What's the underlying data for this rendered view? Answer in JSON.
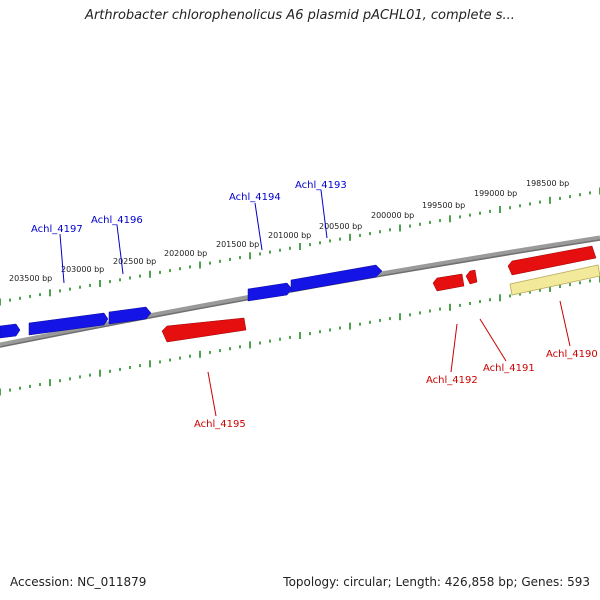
{
  "title": "Arthrobacter chlorophenolicus A6 plasmid pACHL01, complete s...",
  "footer": {
    "accession": "Accession: NC_011879",
    "summary": "Topology: circular; Length: 426,858 bp; Genes: 593"
  },
  "colors": {
    "forward_gene": "#0a0adc",
    "reverse_gene": "#e00000",
    "highlight_gene": "#f0e68c",
    "backbone": "#808080",
    "ticks": "#228b22",
    "forward_label": "#0000cc",
    "reverse_label": "#cc0000"
  },
  "bp_ticks": [
    "203500 bp",
    "203000 bp",
    "202500 bp",
    "202000 bp",
    "201500 bp",
    "201000 bp",
    "200500 bp",
    "200000 bp",
    "199500 bp",
    "199000 bp",
    "198500 bp"
  ],
  "forward_genes": [
    "Achl_4197",
    "Achl_4196",
    "Achl_4194",
    "Achl_4193"
  ],
  "reverse_genes": [
    "Achl_4195",
    "Achl_4192",
    "Achl_4191",
    "Achl_4190"
  ]
}
